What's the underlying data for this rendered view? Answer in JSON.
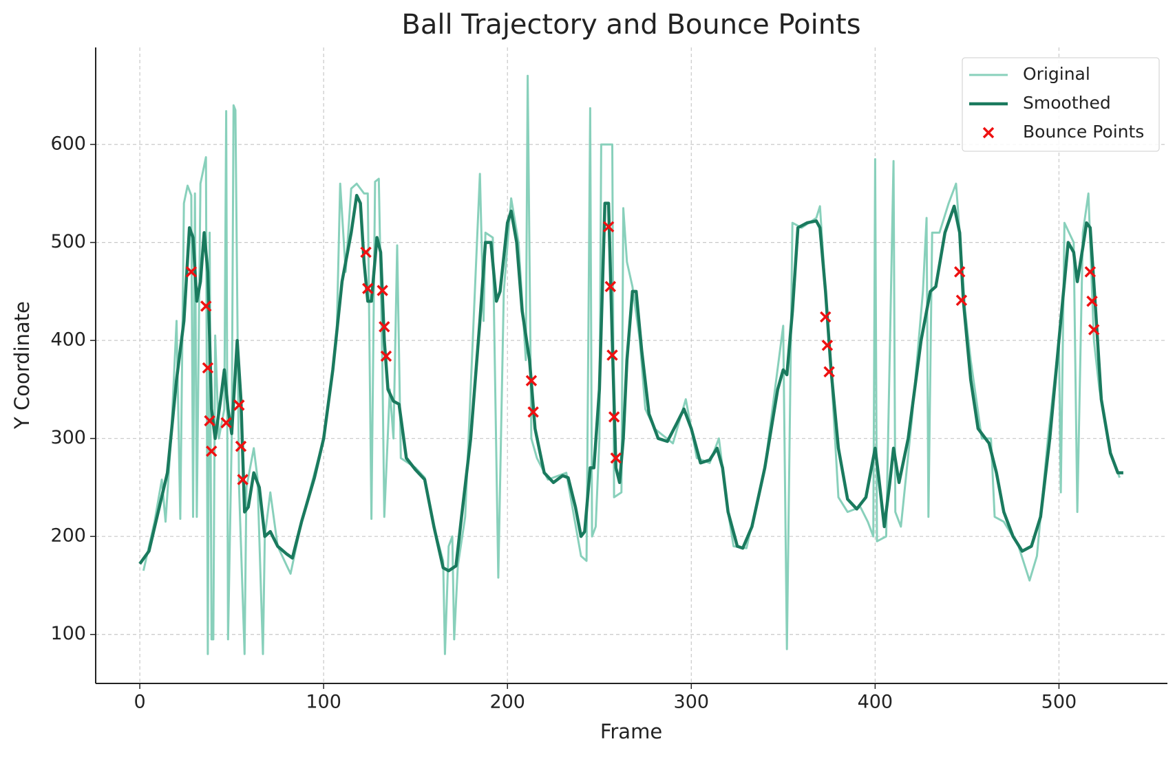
{
  "chart_data": {
    "type": "line",
    "title": "Ball Trajectory and Bounce Points",
    "x_label": "Frame",
    "y_label": "Y Coordinate",
    "xlim": [
      -24,
      559
    ],
    "ylim": [
      50,
      699
    ],
    "xticks": [
      0,
      100,
      200,
      300,
      400,
      500
    ],
    "yticks": [
      100,
      200,
      300,
      400,
      500,
      600
    ],
    "grid": true,
    "legend": "upper right",
    "series": [
      {
        "name": "Original",
        "color": "#88d0bb",
        "kind": "line",
        "x": [
          2,
          8,
          12,
          14,
          17,
          20,
          22,
          24,
          26,
          28,
          29,
          30,
          31,
          33,
          36,
          37,
          38,
          39,
          40,
          41,
          43,
          46,
          47,
          48,
          50,
          51,
          52,
          54,
          57,
          58,
          62,
          64,
          67,
          68,
          71,
          75,
          80,
          82,
          88,
          100,
          107,
          109,
          112,
          115,
          118,
          122,
          124,
          126,
          128,
          130,
          132,
          133,
          136,
          138,
          140,
          142,
          150,
          155,
          160,
          165,
          166,
          168,
          170,
          171,
          173,
          177,
          185,
          187,
          188,
          192,
          195,
          198,
          202,
          206,
          210,
          211,
          213,
          216,
          222,
          232,
          240,
          243,
          245,
          246,
          248,
          250,
          251,
          257,
          258,
          262,
          263,
          265,
          268,
          272,
          275,
          280,
          290,
          297,
          303,
          310,
          315,
          320,
          323,
          330,
          340,
          350,
          352,
          355,
          360,
          368,
          370,
          373,
          376,
          380,
          385,
          392,
          396,
          399,
          400,
          401,
          406,
          410,
          411,
          414,
          420,
          426,
          428,
          429,
          431,
          435,
          440,
          444,
          446,
          449,
          452,
          458,
          463,
          465,
          470,
          478,
          484,
          488,
          494,
          500,
          501,
          503,
          508,
          510,
          513,
          516,
          519,
          522,
          528,
          533
        ],
        "values": [
          165,
          215,
          258,
          215,
          300,
          420,
          218,
          540,
          558,
          548,
          220,
          550,
          220,
          560,
          587,
          80,
          510,
          95,
          95,
          405,
          300,
          330,
          634,
          95,
          300,
          640,
          635,
          250,
          80,
          250,
          290,
          260,
          80,
          200,
          245,
          190,
          170,
          162,
          215,
          300,
          400,
          560,
          470,
          555,
          560,
          550,
          550,
          218,
          562,
          565,
          370,
          220,
          350,
          300,
          497,
          280,
          270,
          260,
          210,
          175,
          80,
          190,
          200,
          95,
          170,
          220,
          570,
          420,
          510,
          505,
          158,
          450,
          545,
          500,
          380,
          670,
          300,
          280,
          258,
          265,
          180,
          175,
          637,
          200,
          210,
          300,
          600,
          600,
          240,
          245,
          535,
          480,
          455,
          400,
          330,
          310,
          295,
          340,
          280,
          275,
          300,
          225,
          190,
          188,
          270,
          415,
          85,
          520,
          515,
          525,
          537,
          450,
          370,
          240,
          225,
          230,
          215,
          200,
          585,
          195,
          200,
          583,
          225,
          210,
          320,
          450,
          525,
          220,
          510,
          510,
          540,
          560,
          510,
          430,
          380,
          300,
          300,
          220,
          215,
          190,
          155,
          180,
          300,
          400,
          245,
          520,
          500,
          225,
          510,
          550,
          400,
          350,
          285,
          260
        ]
      },
      {
        "name": "Smoothed",
        "color": "#1a7a5e",
        "kind": "line",
        "x": [
          0,
          5,
          10,
          15,
          20,
          24,
          27,
          29,
          31,
          33,
          35,
          37,
          39,
          41,
          44,
          46,
          48,
          50,
          53,
          55,
          57,
          59,
          62,
          65,
          68,
          71,
          75,
          80,
          83,
          88,
          95,
          100,
          105,
          110,
          115,
          118,
          120,
          122,
          124,
          126,
          129,
          131,
          133,
          135,
          138,
          141,
          145,
          150,
          155,
          160,
          165,
          168,
          172,
          175,
          180,
          185,
          188,
          191,
          194,
          196,
          200,
          202,
          205,
          208,
          212,
          215,
          220,
          225,
          230,
          233,
          237,
          240,
          242,
          245,
          247,
          250,
          253,
          255,
          257,
          259,
          261,
          263,
          265,
          268,
          270,
          273,
          277,
          282,
          287,
          292,
          296,
          300,
          305,
          310,
          314,
          317,
          320,
          325,
          328,
          333,
          340,
          347,
          350,
          352,
          355,
          358,
          363,
          368,
          370,
          373,
          376,
          380,
          385,
          390,
          395,
          398,
          400,
          402,
          405,
          408,
          410,
          413,
          418,
          425,
          430,
          433,
          438,
          443,
          446,
          448,
          452,
          456,
          462,
          466,
          470,
          475,
          480,
          485,
          490,
          495,
          500,
          505,
          508,
          510,
          513,
          515,
          517,
          520,
          523,
          528,
          532,
          535
        ],
        "values": [
          172,
          185,
          225,
          265,
          360,
          420,
          515,
          505,
          440,
          460,
          510,
          470,
          330,
          300,
          340,
          370,
          330,
          305,
          400,
          340,
          225,
          230,
          265,
          250,
          200,
          205,
          190,
          182,
          178,
          215,
          260,
          300,
          370,
          460,
          510,
          548,
          540,
          480,
          440,
          440,
          505,
          490,
          400,
          350,
          338,
          335,
          280,
          268,
          258,
          210,
          168,
          165,
          170,
          220,
          300,
          420,
          500,
          500,
          440,
          450,
          520,
          532,
          500,
          430,
          380,
          310,
          265,
          255,
          262,
          260,
          230,
          200,
          205,
          270,
          270,
          350,
          540,
          540,
          400,
          270,
          255,
          300,
          380,
          450,
          450,
          390,
          325,
          300,
          297,
          315,
          330,
          310,
          275,
          278,
          290,
          270,
          225,
          190,
          188,
          210,
          270,
          350,
          370,
          365,
          430,
          515,
          520,
          522,
          515,
          450,
          370,
          290,
          238,
          228,
          240,
          270,
          290,
          260,
          210,
          255,
          290,
          255,
          300,
          400,
          450,
          455,
          510,
          537,
          510,
          440,
          360,
          310,
          295,
          265,
          225,
          200,
          185,
          190,
          220,
          300,
          400,
          500,
          490,
          460,
          495,
          520,
          515,
          430,
          340,
          285,
          265,
          265
        ]
      },
      {
        "name": "Bounce Points",
        "color": "#ee1111",
        "kind": "scatter",
        "x": [
          28,
          36,
          37,
          38,
          39,
          47,
          54,
          55,
          56,
          123,
          124,
          132,
          133,
          134,
          213,
          214,
          255,
          256,
          257,
          258,
          259,
          373,
          374,
          375,
          446,
          447,
          517,
          518,
          519
        ],
        "values": [
          470,
          435,
          372,
          318,
          287,
          316,
          334,
          292,
          258,
          490,
          453,
          451,
          414,
          384,
          359,
          327,
          516,
          455,
          385,
          322,
          280,
          424,
          395,
          368,
          470,
          441,
          470,
          440,
          411
        ]
      }
    ]
  }
}
